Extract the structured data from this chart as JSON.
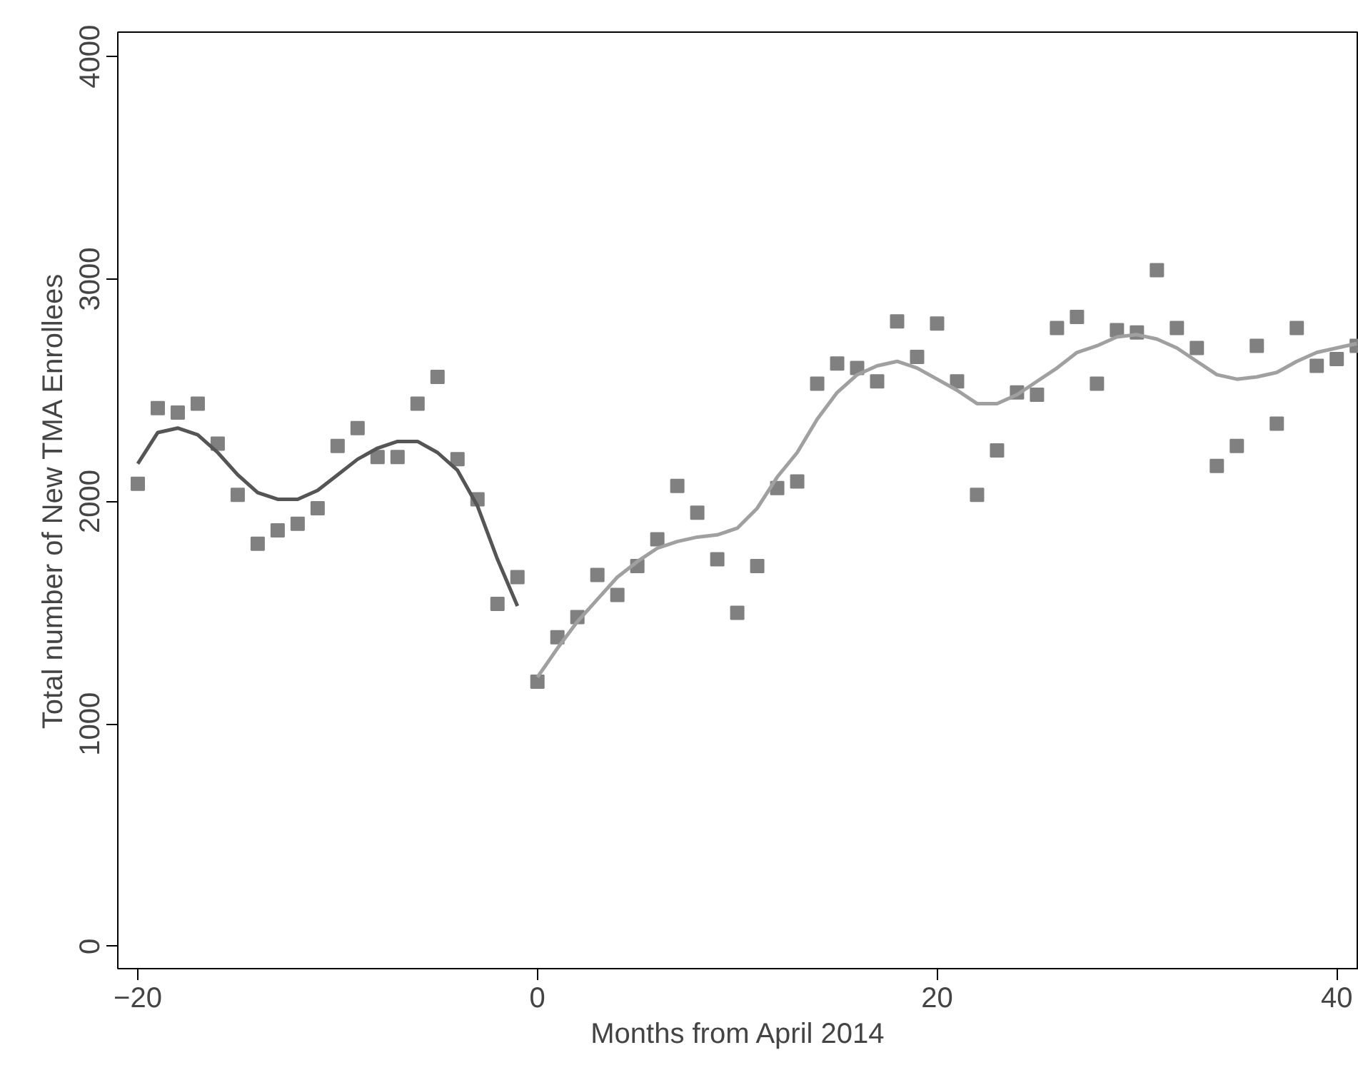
{
  "chart_data": {
    "type": "scatter",
    "xlabel": "Months from April 2014",
    "ylabel": "Total number of New TMA Enrollees",
    "xlim": [
      -21,
      41.1
    ],
    "ylim": [
      -100,
      4110
    ],
    "xticks": [
      -20,
      0,
      20,
      40
    ],
    "yticks": [
      0,
      1000,
      2000,
      3000,
      4000
    ],
    "grid": false,
    "series": [
      {
        "color": "#808080",
        "marker": "square",
        "x": [
          -20,
          -19,
          -18,
          -17,
          -16,
          -15,
          -14,
          -13,
          -12,
          -11,
          -10,
          -9,
          -8,
          -7,
          -6,
          -5,
          -4,
          -3,
          -2,
          -1,
          0,
          1,
          2,
          3,
          4,
          5,
          6,
          7,
          8,
          9,
          10,
          11,
          12,
          13,
          14,
          15,
          16,
          17,
          18,
          19,
          20,
          21,
          22,
          23,
          24,
          25,
          26,
          27,
          28,
          29,
          30,
          31,
          32,
          33,
          34,
          35,
          36,
          37,
          38,
          39,
          40,
          41
        ],
        "values": [
          2080,
          2420,
          2400,
          2440,
          2260,
          2030,
          1810,
          1870,
          1900,
          1970,
          2250,
          2330,
          2200,
          2200,
          2440,
          2560,
          2190,
          2010,
          1540,
          1660,
          1190,
          1390,
          1480,
          1670,
          1580,
          1710,
          1830,
          2070,
          1950,
          1740,
          1500,
          1710,
          2060,
          2090,
          2530,
          2620,
          2600,
          2540,
          2810,
          2650,
          2800,
          2540,
          2030,
          2230,
          2490,
          2480,
          2780,
          2830,
          2530,
          2770,
          2760,
          3040,
          2780,
          2690,
          2160,
          2250,
          2700,
          2350,
          2780,
          2610,
          2640,
          2700
        ]
      },
      {
        "type": "line",
        "color": "#555555",
        "line_style": "solid",
        "x": [
          -20,
          -19,
          -18,
          -17,
          -16,
          -15,
          -14,
          -13,
          -12,
          -11,
          -10,
          -9,
          -8,
          -7,
          -6,
          -5,
          -4,
          -3,
          -2,
          -1
        ],
        "values": [
          2170,
          2310,
          2330,
          2300,
          2220,
          2120,
          2040,
          2010,
          2010,
          2050,
          2120,
          2190,
          2240,
          2270,
          2270,
          2220,
          2140,
          1980,
          1740,
          1530
        ]
      },
      {
        "type": "line",
        "color": "#a0a0a0",
        "line_style": "solid",
        "x": [
          0,
          1,
          2,
          3,
          4,
          5,
          6,
          7,
          8,
          9,
          10,
          11,
          12,
          13,
          14,
          15,
          16,
          17,
          18,
          19,
          20,
          21,
          22,
          23,
          24,
          25,
          26,
          27,
          28,
          29,
          30,
          31,
          32,
          33,
          34,
          35,
          36,
          37,
          38,
          39,
          40,
          41
        ],
        "values": [
          1210,
          1340,
          1460,
          1560,
          1660,
          1730,
          1790,
          1820,
          1840,
          1850,
          1880,
          1970,
          2110,
          2220,
          2370,
          2490,
          2570,
          2610,
          2630,
          2600,
          2550,
          2500,
          2440,
          2440,
          2480,
          2540,
          2600,
          2670,
          2700,
          2740,
          2750,
          2730,
          2690,
          2630,
          2570,
          2550,
          2560,
          2580,
          2630,
          2670,
          2690,
          2710
        ]
      }
    ]
  }
}
